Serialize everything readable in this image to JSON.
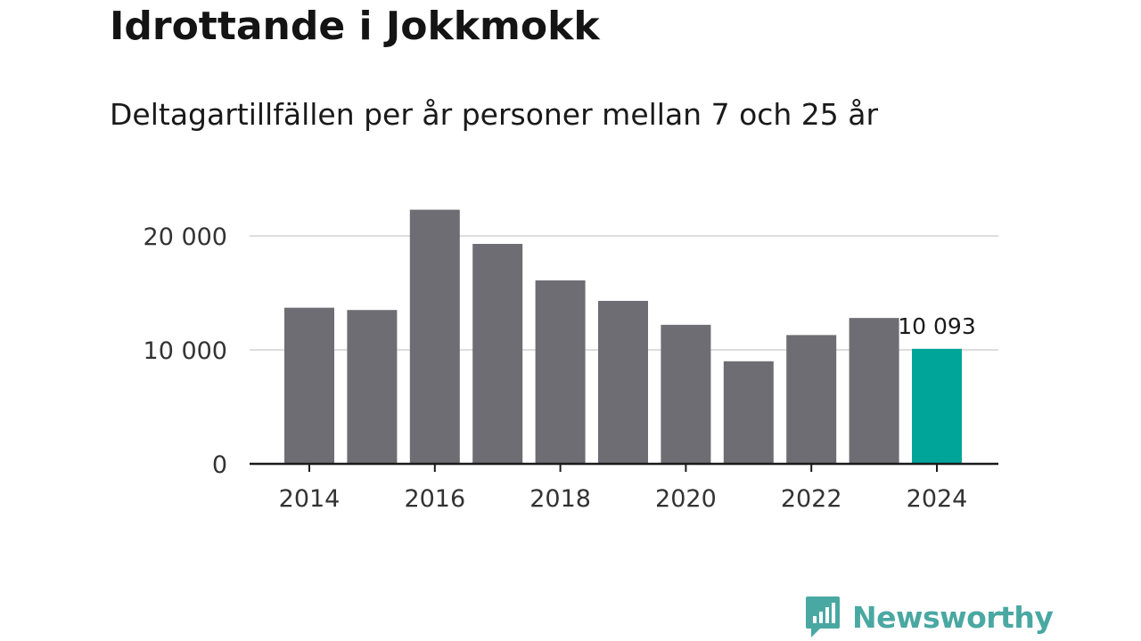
{
  "title": "Idrottande i Jokkmokk",
  "subtitle": "Deltagartillfällen per år personer mellan 7 och 25 år",
  "brand": {
    "name": "Newsworthy",
    "icon": "bar-chart-speech-bubble-icon",
    "color": "#4aa8a2"
  },
  "chart_data": {
    "type": "bar",
    "title": "Idrottande i Jokkmokk",
    "subtitle": "Deltagartillfällen per år personer mellan 7 och 25 år",
    "xlabel": "",
    "ylabel": "",
    "categories": [
      "2014",
      "2015",
      "2016",
      "2017",
      "2018",
      "2019",
      "2020",
      "2021",
      "2022",
      "2023",
      "2024"
    ],
    "values": [
      13700,
      13500,
      22300,
      19300,
      16100,
      14300,
      12200,
      9000,
      11300,
      12800,
      10093
    ],
    "ylim": [
      0,
      22500
    ],
    "yticks": [
      0,
      10000,
      20000
    ],
    "ytick_labels": [
      "0",
      "10 000",
      "20 000"
    ],
    "xtick_labels": [
      "2014",
      "2016",
      "2018",
      "2020",
      "2022",
      "2024"
    ],
    "bar_color": "#6e6d73",
    "highlight_color": "#00a59a",
    "highlight_category": "2024",
    "data_labels": [
      {
        "category": "2024",
        "text": "10 093"
      }
    ],
    "grid": true
  }
}
